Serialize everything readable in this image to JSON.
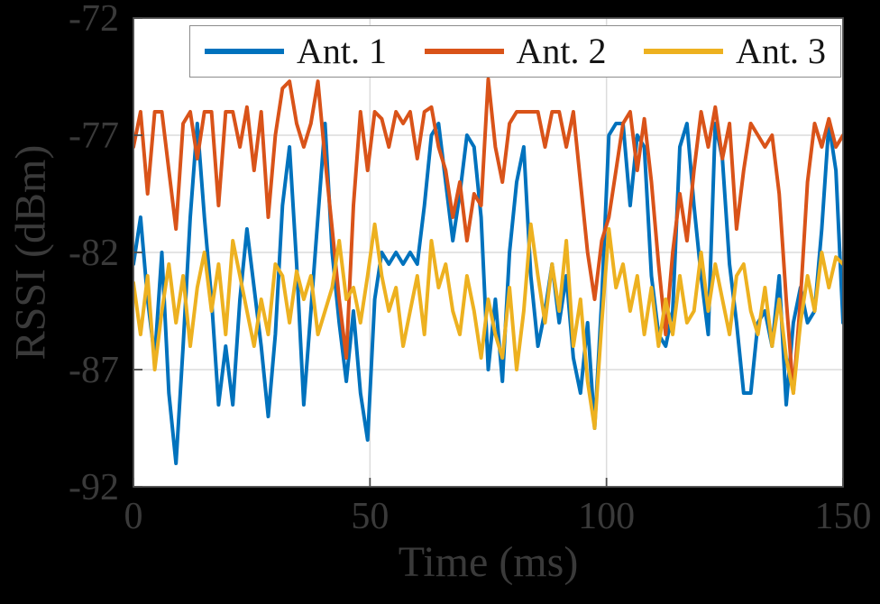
{
  "figure": {
    "background": "#000000",
    "plot_bg": "#ffffff",
    "grid_color": "#dcdcdc",
    "axis_color": "#4d4d4d",
    "label_color": "#3a3a3a"
  },
  "chart_data": {
    "type": "line",
    "title": "",
    "xlabel": "Time (ms)",
    "ylabel": "RSSI (dBm)",
    "xlim": [
      0,
      150
    ],
    "ylim": [
      -92,
      -72
    ],
    "xticks": [
      0,
      50,
      100,
      150
    ],
    "yticks": [
      -72,
      -77,
      -82,
      -87,
      -92
    ],
    "grid": true,
    "legend_position": "top-inside",
    "x_start": 0,
    "x_step": 1.5,
    "series": [
      {
        "name": "Ant. 1",
        "color": "#0072BD",
        "values": [
          -82.5,
          -80.5,
          -84,
          -86.5,
          -82,
          -88,
          -91,
          -86,
          -80.5,
          -76.5,
          -80.5,
          -84,
          -88.5,
          -86,
          -88.5,
          -84,
          -81,
          -83.5,
          -86,
          -89,
          -85.5,
          -80,
          -77.5,
          -82.5,
          -88.5,
          -84.5,
          -80.5,
          -76.5,
          -82,
          -85,
          -87.5,
          -84.5,
          -88,
          -90,
          -84,
          -82,
          -82.5,
          -82,
          -82.5,
          -82,
          -82.5,
          -80,
          -77,
          -76.5,
          -79,
          -81.5,
          -79.5,
          -77,
          -77.5,
          -80.5,
          -87,
          -84,
          -87.5,
          -82,
          -79,
          -77.5,
          -83,
          -86,
          -84.5,
          -82.5,
          -85,
          -83,
          -86.5,
          -88,
          -85,
          -89.5,
          -84,
          -77,
          -76.5,
          -76.5,
          -80,
          -77,
          -77.5,
          -83,
          -85.5,
          -86,
          -84.5,
          -77.5,
          -76.5,
          -80,
          -83,
          -85.5,
          -76.5,
          -78,
          -82.5,
          -85,
          -88,
          -88,
          -85,
          -84.5,
          -86,
          -83,
          -88.5,
          -85,
          -83.5,
          -85,
          -84.5,
          -81,
          -76.5,
          -78.5,
          -85
        ]
      },
      {
        "name": "Ant. 2",
        "color": "#D95319",
        "values": [
          -77.5,
          -76,
          -79.5,
          -76,
          -76,
          -78.5,
          -81,
          -76.5,
          -76,
          -78,
          -76,
          -76,
          -80,
          -76,
          -76,
          -77.5,
          -75.8,
          -78.5,
          -76,
          -80.5,
          -77,
          -75,
          -74.7,
          -76.5,
          -77.5,
          -76.5,
          -74.7,
          -78,
          -81,
          -84,
          -86.5,
          -80,
          -76,
          -78.5,
          -76,
          -76.3,
          -77.5,
          -76,
          -76.5,
          -76,
          -78,
          -76,
          -75.8,
          -77.5,
          -78.5,
          -80.5,
          -79,
          -81.5,
          -79.5,
          -80,
          -74.6,
          -77.5,
          -79,
          -76.5,
          -76,
          -76,
          -76,
          -76,
          -77.5,
          -76,
          -76,
          -77.5,
          -76,
          -79,
          -82,
          -84,
          -81.5,
          -80.5,
          -78.5,
          -76.5,
          -76,
          -78.5,
          -76.3,
          -79,
          -82.5,
          -85.5,
          -82,
          -79.5,
          -81.5,
          -78.5,
          -76,
          -77.5,
          -75.8,
          -78,
          -76.5,
          -81,
          -78.5,
          -76.5,
          -77,
          -77.5,
          -77,
          -79.5,
          -84,
          -88,
          -84,
          -79,
          -76.5,
          -77.5,
          -76.3,
          -77.5,
          -77
        ]
      },
      {
        "name": "Ant. 3",
        "color": "#EDB120",
        "values": [
          -83.3,
          -85.5,
          -83,
          -87,
          -84.5,
          -82.5,
          -85,
          -83,
          -86,
          -83.5,
          -82,
          -84.5,
          -82.5,
          -85.5,
          -81.5,
          -83,
          -84.5,
          -86,
          -84,
          -85.5,
          -82.5,
          -83,
          -85,
          -82.8,
          -84,
          -83,
          -85.5,
          -84.5,
          -83.5,
          -81.5,
          -84,
          -83.5,
          -85,
          -83,
          -80.8,
          -83,
          -84.5,
          -83.5,
          -86,
          -84.5,
          -83,
          -85.5,
          -81.5,
          -83.5,
          -82.5,
          -84.5,
          -85.5,
          -83,
          -84.5,
          -86.5,
          -84,
          -85.5,
          -86.5,
          -83.5,
          -87,
          -84.5,
          -80.8,
          -83,
          -85,
          -82.5,
          -84.5,
          -81.5,
          -86,
          -84,
          -87.5,
          -89.5,
          -85,
          -81,
          -83.5,
          -82.5,
          -84.5,
          -83,
          -85.5,
          -83.5,
          -86,
          -84,
          -85.5,
          -83,
          -85,
          -84.5,
          -82,
          -84.5,
          -82.5,
          -84,
          -85.5,
          -83,
          -82.5,
          -84.5,
          -85.5,
          -83.5,
          -86,
          -84,
          -86.5,
          -88,
          -85,
          -83,
          -84.5,
          -82,
          -83.5,
          -82.2,
          -82.5
        ]
      }
    ]
  }
}
